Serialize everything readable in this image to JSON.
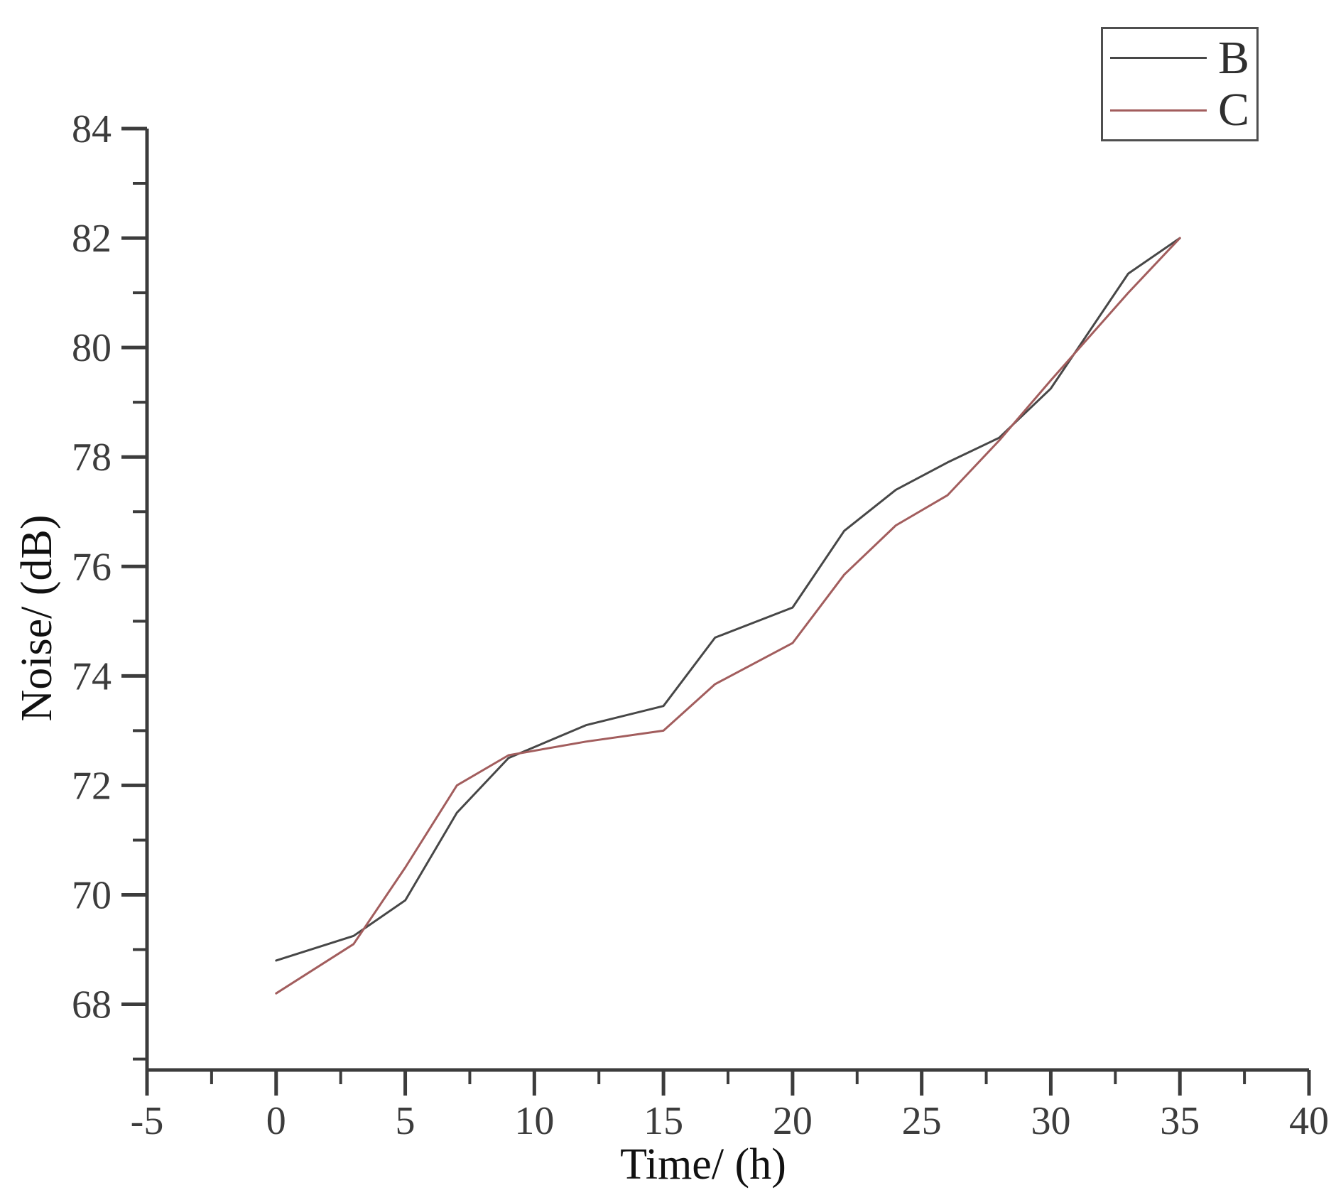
{
  "chart_data": {
    "type": "line",
    "title": "",
    "xlabel": "Time/ (h)",
    "ylabel": "Noise/ (dB)",
    "xlim": [
      -5,
      40
    ],
    "ylim": [
      66.8,
      84
    ],
    "x_major_ticks": [
      -5,
      0,
      5,
      10,
      15,
      20,
      25,
      30,
      35,
      40
    ],
    "x_minor_ticks": [
      -2.5,
      2.5,
      7.5,
      12.5,
      17.5,
      22.5,
      27.5,
      32.5,
      37.5
    ],
    "y_major_ticks": [
      68,
      70,
      72,
      74,
      76,
      78,
      80,
      82,
      84
    ],
    "y_minor_ticks": [
      67,
      69,
      71,
      73,
      75,
      77,
      79,
      81,
      83
    ],
    "grid": false,
    "legend_position": "top-right",
    "x": [
      0,
      3,
      5,
      7,
      9,
      12,
      15,
      17,
      20,
      22,
      24,
      26,
      28,
      30,
      33,
      35
    ],
    "series": [
      {
        "name": "B",
        "color": "#474747",
        "values": [
          68.8,
          69.25,
          69.9,
          71.5,
          72.5,
          73.1,
          73.45,
          74.7,
          75.25,
          76.65,
          77.4,
          77.9,
          78.35,
          79.25,
          81.35,
          82.0
        ]
      },
      {
        "name": "C",
        "color": "#a25d5d",
        "values": [
          68.2,
          69.1,
          70.5,
          72.0,
          72.55,
          72.8,
          73.0,
          73.85,
          74.6,
          75.85,
          76.75,
          77.3,
          78.3,
          79.4,
          81.0,
          82.0
        ]
      }
    ],
    "axis_color": "#3c3c3c"
  }
}
